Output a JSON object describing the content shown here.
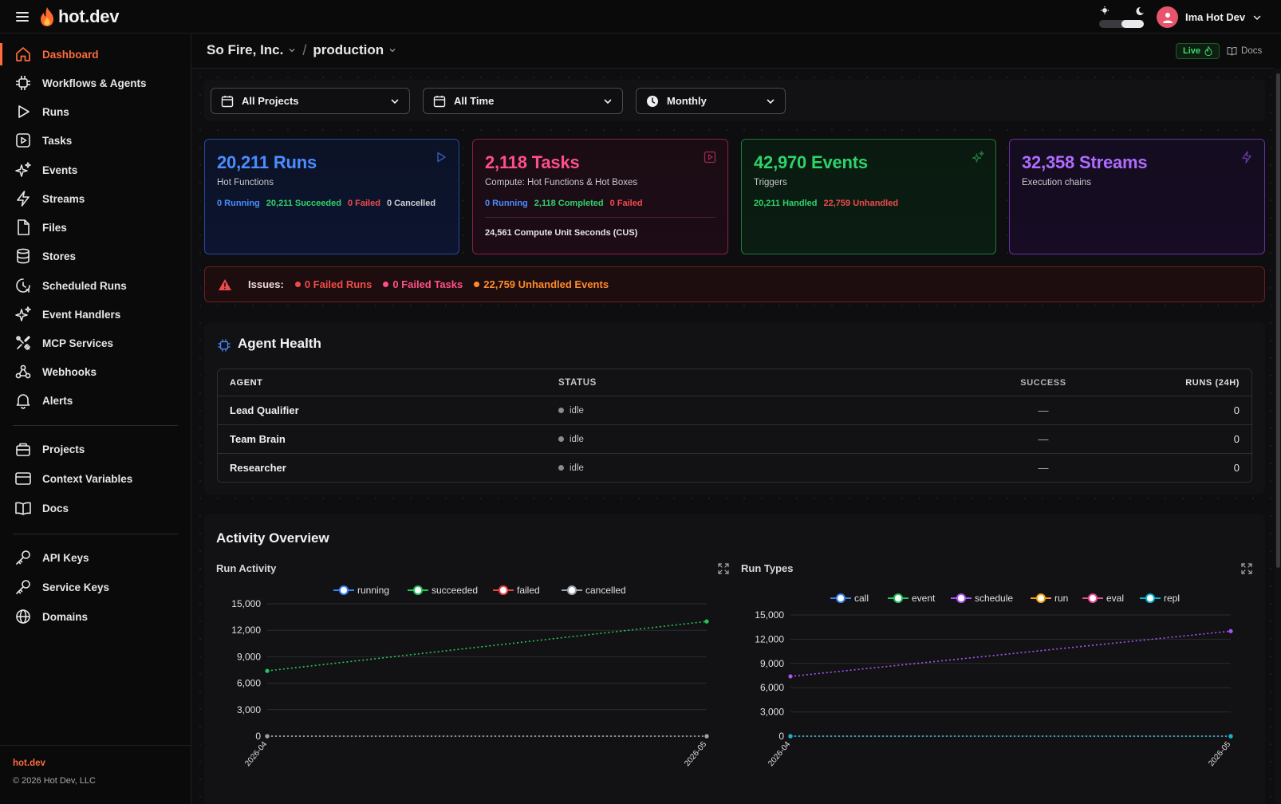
{
  "app": {
    "logo_text": "hot.dev",
    "user_name": "Ima Hot Dev"
  },
  "sidebar": {
    "items": [
      {
        "label": "Dashboard",
        "icon": "home-icon",
        "active": true
      },
      {
        "label": "Workflows & Agents",
        "icon": "workflow-icon"
      },
      {
        "label": "Runs",
        "icon": "play-icon"
      },
      {
        "label": "Tasks",
        "icon": "task-icon"
      },
      {
        "label": "Events",
        "icon": "sparkle-icon"
      },
      {
        "label": "Streams",
        "icon": "bolt-icon"
      },
      {
        "label": "Files",
        "icon": "file-icon"
      },
      {
        "label": "Stores",
        "icon": "database-icon"
      },
      {
        "label": "Scheduled Runs",
        "icon": "clock-icon"
      },
      {
        "label": "Event Handlers",
        "icon": "sparkle-icon"
      },
      {
        "label": "MCP Services",
        "icon": "tools-icon"
      },
      {
        "label": "Webhooks",
        "icon": "webhook-icon"
      },
      {
        "label": "Alerts",
        "icon": "bell-icon"
      }
    ],
    "items2": [
      {
        "label": "Projects",
        "icon": "projects-icon"
      },
      {
        "label": "Context Variables",
        "icon": "variables-icon"
      },
      {
        "label": "Docs",
        "icon": "book-icon"
      }
    ],
    "items3": [
      {
        "label": "API Keys",
        "icon": "key-icon"
      },
      {
        "label": "Service Keys",
        "icon": "key-icon"
      },
      {
        "label": "Domains",
        "icon": "globe-icon"
      }
    ],
    "footer_link": "hot.dev",
    "footer_copy": "© 2026 Hot Dev, LLC"
  },
  "header": {
    "org": "So Fire, Inc.",
    "separator": "/",
    "env": "production",
    "live_label": "Live",
    "docs_label": "Docs"
  },
  "filters": {
    "project": "All Projects",
    "range": "All Time",
    "interval": "Monthly"
  },
  "stats": {
    "runs": {
      "count": "20,211",
      "noun": "Runs",
      "sub": "Hot Functions",
      "running": "0 Running",
      "succeeded": "20,211 Succeeded",
      "failed": "0 Failed",
      "cancelled": "0 Cancelled"
    },
    "tasks": {
      "count": "2,118",
      "noun": "Tasks",
      "sub": "Compute: Hot Functions & Hot Boxes",
      "running": "0 Running",
      "completed": "2,118 Completed",
      "failed": "0 Failed",
      "compute": "24,561 Compute Unit Seconds (CUS)"
    },
    "events": {
      "count": "42,970",
      "noun": "Events",
      "sub": "Triggers",
      "handled": "20,211 Handled",
      "unhandled": "22,759 Unhandled"
    },
    "streams": {
      "count": "32,358",
      "noun": "Streams",
      "sub": "Execution chains"
    }
  },
  "issues": {
    "label": "Issues:",
    "failed_runs": "0 Failed Runs",
    "failed_tasks": "0 Failed Tasks",
    "unhandled_events": "22,759 Unhandled Events"
  },
  "agent_health": {
    "title": "Agent Health",
    "columns": [
      "AGENT",
      "STATUS",
      "SUCCESS",
      "RUNS (24H)"
    ],
    "rows": [
      {
        "agent": "Lead Qualifier",
        "status": "idle",
        "success": "—",
        "runs": "0"
      },
      {
        "agent": "Team Brain",
        "status": "idle",
        "success": "—",
        "runs": "0"
      },
      {
        "agent": "Researcher",
        "status": "idle",
        "success": "—",
        "runs": "0"
      }
    ]
  },
  "activity": {
    "title": "Activity Overview"
  },
  "chart_data": [
    {
      "type": "line",
      "title": "Run Activity",
      "x": [
        "2026-04",
        "2026-05"
      ],
      "ylim": [
        0,
        15000
      ],
      "yticks": [
        "0",
        "3,000",
        "6,000",
        "9,000",
        "12,000",
        "15,000"
      ],
      "legend": "top",
      "series": [
        {
          "name": "running",
          "color": "#3b82f6",
          "values": [
            0,
            0
          ]
        },
        {
          "name": "succeeded",
          "color": "#22c55e",
          "values": [
            7400,
            13000
          ]
        },
        {
          "name": "failed",
          "color": "#ef4444",
          "values": [
            0,
            0
          ]
        },
        {
          "name": "cancelled",
          "color": "#9ca3af",
          "values": [
            0,
            0
          ]
        }
      ]
    },
    {
      "type": "line",
      "title": "Run Types",
      "x": [
        "2026-04",
        "2026-05"
      ],
      "ylim": [
        0,
        15000
      ],
      "yticks": [
        "0",
        "3,000",
        "6,000",
        "9,000",
        "12,000",
        "15,000"
      ],
      "legend": "top",
      "series": [
        {
          "name": "call",
          "color": "#3b82f6",
          "values": [
            0,
            0
          ]
        },
        {
          "name": "event",
          "color": "#22c55e",
          "values": [
            0,
            0
          ]
        },
        {
          "name": "schedule",
          "color": "#a855f7",
          "values": [
            7400,
            13000
          ]
        },
        {
          "name": "run",
          "color": "#f59e0b",
          "values": [
            0,
            0
          ]
        },
        {
          "name": "eval",
          "color": "#ec4899",
          "values": [
            0,
            0
          ]
        },
        {
          "name": "repl",
          "color": "#06b6d4",
          "values": [
            0,
            0
          ]
        }
      ]
    }
  ]
}
